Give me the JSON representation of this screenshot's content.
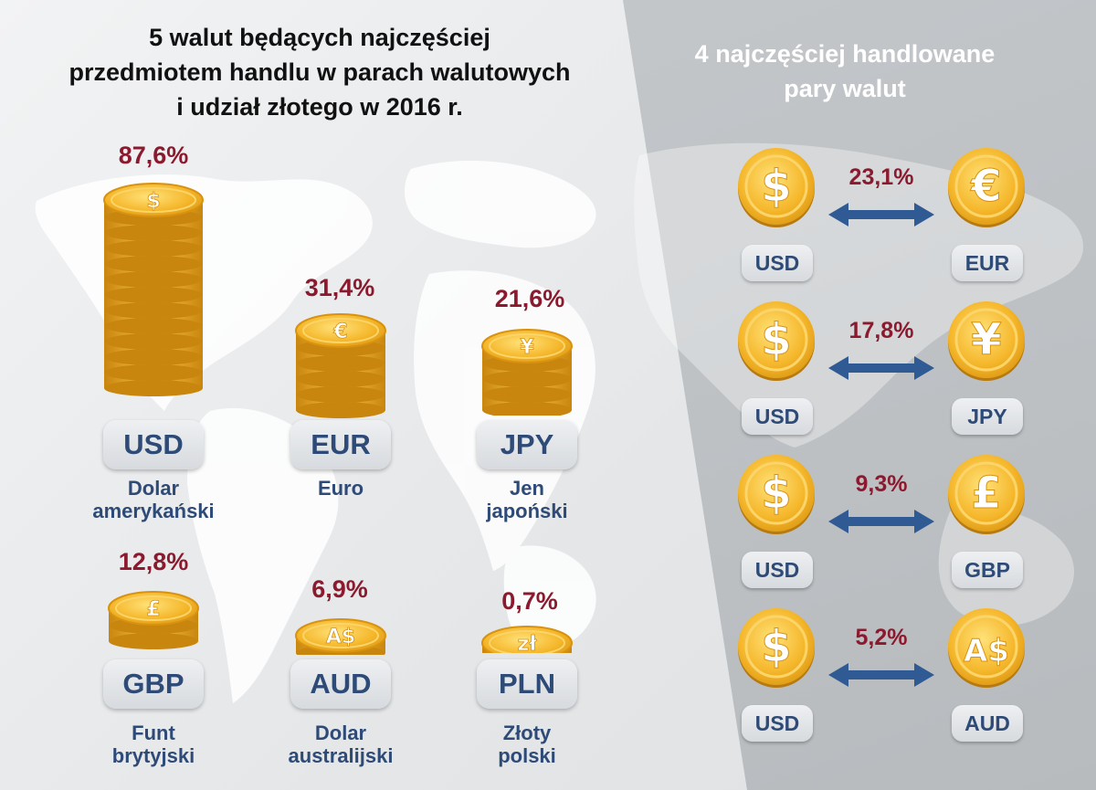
{
  "left": {
    "title_line1": "5 walut będących najczęściej",
    "title_line2": "przedmiotem handlu w parach walutowych",
    "title_line3": "i udział złotego w 2016 r.",
    "currencies": [
      {
        "code": "USD",
        "name_line1": "Dolar",
        "name_line2": "amerykański",
        "share": "87,6%",
        "symbol": "$",
        "coin_icon": "dollar-coin-icon"
      },
      {
        "code": "EUR",
        "name_line1": "Euro",
        "name_line2": "",
        "share": "31,4%",
        "symbol": "€",
        "coin_icon": "euro-coin-icon"
      },
      {
        "code": "JPY",
        "name_line1": "Jen",
        "name_line2": "japoński",
        "share": "21,6%",
        "symbol": "¥",
        "coin_icon": "yen-coin-icon"
      },
      {
        "code": "GBP",
        "name_line1": "Funt",
        "name_line2": "brytyjski",
        "share": "12,8%",
        "symbol": "£",
        "coin_icon": "pound-coin-icon"
      },
      {
        "code": "AUD",
        "name_line1": "Dolar",
        "name_line2": "australijski",
        "share": "6,9%",
        "symbol": "A$",
        "coin_icon": "aud-coin-icon"
      },
      {
        "code": "PLN",
        "name_line1": "Złoty",
        "name_line2": "polski",
        "share": "0,7%",
        "symbol": "zł",
        "coin_icon": "zloty-coin-icon"
      }
    ]
  },
  "right": {
    "title_line1": "4 najczęściej handlowane",
    "title_line2": "pary walut",
    "pairs": [
      {
        "base": "USD",
        "quote": "EUR",
        "share": "23,1%",
        "base_symbol": "$",
        "quote_symbol": "€"
      },
      {
        "base": "USD",
        "quote": "JPY",
        "share": "17,8%",
        "base_symbol": "$",
        "quote_symbol": "¥"
      },
      {
        "base": "USD",
        "quote": "GBP",
        "share": "9,3%",
        "base_symbol": "$",
        "quote_symbol": "£"
      },
      {
        "base": "USD",
        "quote": "AUD",
        "share": "5,2%",
        "base_symbol": "$",
        "quote_symbol": "A$"
      }
    ]
  },
  "colors": {
    "percent": "#8b1a2e",
    "label": "#2e4a77",
    "coin_gold": "#f5b72b",
    "coin_dark": "#c9860f",
    "arrow": "#2f5a93"
  }
}
